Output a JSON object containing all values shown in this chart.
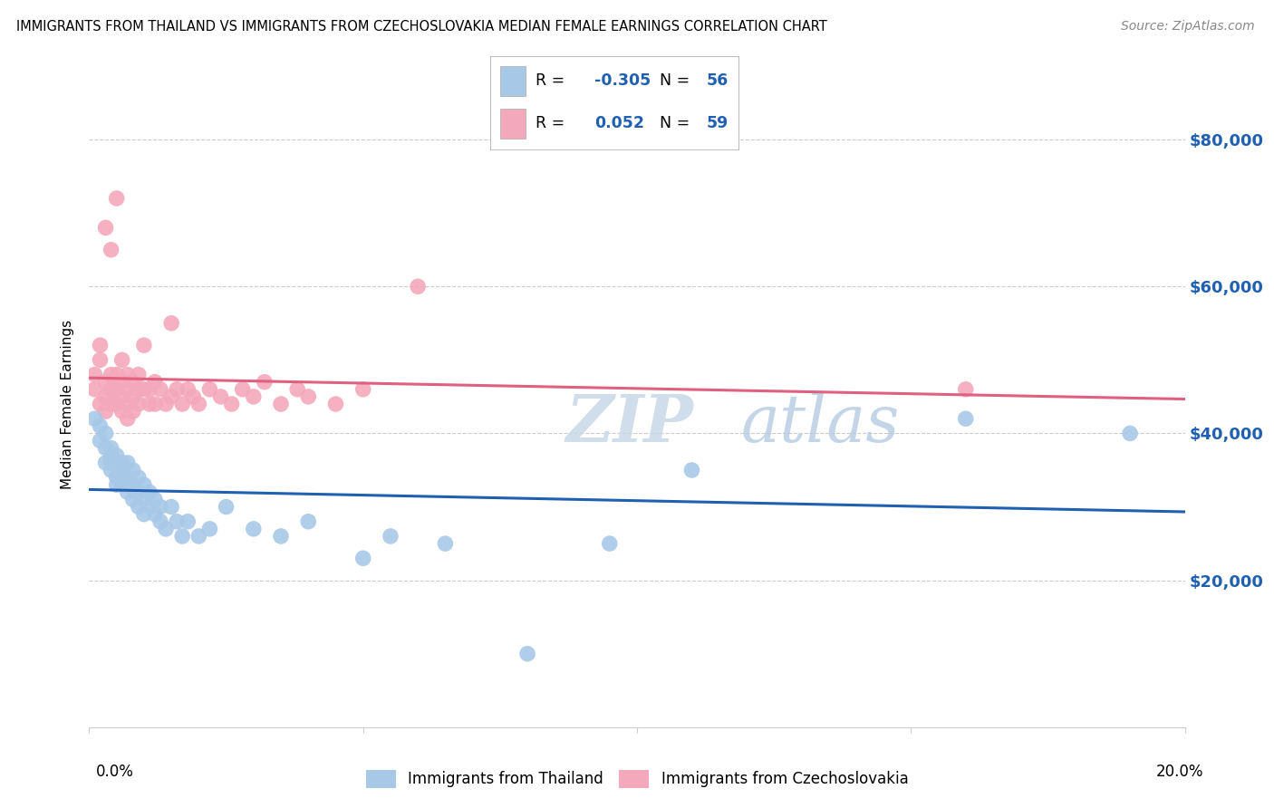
{
  "title": "IMMIGRANTS FROM THAILAND VS IMMIGRANTS FROM CZECHOSLOVAKIA MEDIAN FEMALE EARNINGS CORRELATION CHART",
  "source": "Source: ZipAtlas.com",
  "ylabel": "Median Female Earnings",
  "y_tick_labels": [
    "$20,000",
    "$40,000",
    "$60,000",
    "$80,000"
  ],
  "y_tick_values": [
    20000,
    40000,
    60000,
    80000
  ],
  "xlim": [
    0.0,
    0.2
  ],
  "ylim": [
    0,
    88000
  ],
  "color_thailand": "#a8c8e8",
  "color_czechoslovakia": "#f4a8bc",
  "color_line_thailand": "#2060b0",
  "color_line_czechoslovakia": "#e06080",
  "color_ytick": "#2060b0",
  "background_color": "#ffffff",
  "title_fontsize": 10.5,
  "source_fontsize": 10,
  "watermark": "ZIPatlas",
  "thailand_x": [
    0.001,
    0.002,
    0.002,
    0.003,
    0.003,
    0.003,
    0.004,
    0.004,
    0.004,
    0.004,
    0.005,
    0.005,
    0.005,
    0.005,
    0.006,
    0.006,
    0.006,
    0.006,
    0.007,
    0.007,
    0.007,
    0.007,
    0.008,
    0.008,
    0.008,
    0.009,
    0.009,
    0.009,
    0.01,
    0.01,
    0.01,
    0.011,
    0.011,
    0.012,
    0.012,
    0.013,
    0.013,
    0.014,
    0.015,
    0.016,
    0.017,
    0.018,
    0.02,
    0.022,
    0.025,
    0.03,
    0.035,
    0.04,
    0.05,
    0.055,
    0.065,
    0.08,
    0.095,
    0.11,
    0.16,
    0.19
  ],
  "thailand_y": [
    42000,
    39000,
    41000,
    38000,
    36000,
    40000,
    37000,
    35000,
    38000,
    36000,
    34000,
    36000,
    33000,
    37000,
    35000,
    33000,
    36000,
    34000,
    32000,
    34000,
    36000,
    33000,
    31000,
    33000,
    35000,
    32000,
    30000,
    34000,
    31000,
    33000,
    29000,
    30000,
    32000,
    29000,
    31000,
    28000,
    30000,
    27000,
    30000,
    28000,
    26000,
    28000,
    26000,
    27000,
    30000,
    27000,
    26000,
    28000,
    23000,
    26000,
    25000,
    10000,
    25000,
    35000,
    42000,
    40000
  ],
  "czechoslovakia_x": [
    0.001,
    0.001,
    0.002,
    0.002,
    0.002,
    0.003,
    0.003,
    0.003,
    0.003,
    0.004,
    0.004,
    0.004,
    0.004,
    0.005,
    0.005,
    0.005,
    0.005,
    0.006,
    0.006,
    0.006,
    0.006,
    0.007,
    0.007,
    0.007,
    0.007,
    0.008,
    0.008,
    0.008,
    0.009,
    0.009,
    0.009,
    0.01,
    0.01,
    0.011,
    0.011,
    0.012,
    0.012,
    0.013,
    0.014,
    0.015,
    0.015,
    0.016,
    0.017,
    0.018,
    0.019,
    0.02,
    0.022,
    0.024,
    0.026,
    0.028,
    0.03,
    0.032,
    0.035,
    0.038,
    0.04,
    0.045,
    0.05,
    0.06,
    0.16
  ],
  "czechoslovakia_y": [
    46000,
    48000,
    44000,
    50000,
    52000,
    43000,
    47000,
    45000,
    68000,
    44000,
    46000,
    48000,
    65000,
    44000,
    46000,
    72000,
    48000,
    43000,
    45000,
    50000,
    47000,
    44000,
    46000,
    42000,
    48000,
    45000,
    47000,
    43000,
    46000,
    44000,
    48000,
    46000,
    52000,
    44000,
    46000,
    44000,
    47000,
    46000,
    44000,
    55000,
    45000,
    46000,
    44000,
    46000,
    45000,
    44000,
    46000,
    45000,
    44000,
    46000,
    45000,
    47000,
    44000,
    46000,
    45000,
    44000,
    46000,
    60000,
    46000
  ]
}
